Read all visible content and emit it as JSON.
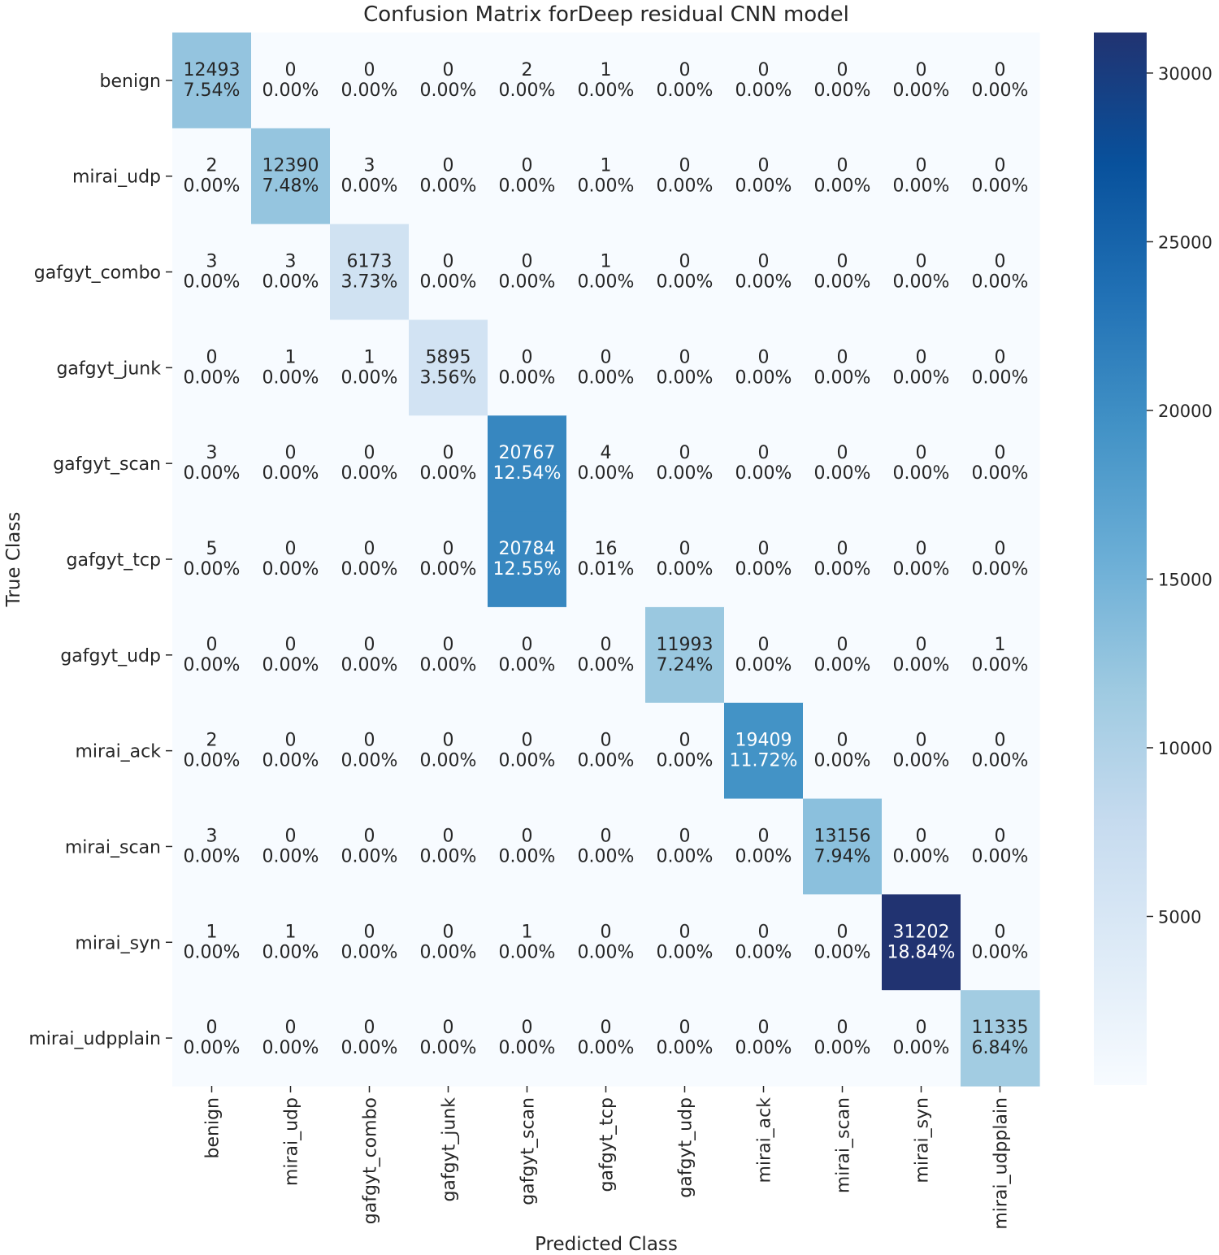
{
  "chart_data": {
    "type": "heatmap",
    "title": "Confusion Matrix forDeep residual CNN model",
    "xlabel": "Predicted Class",
    "ylabel": "True Class",
    "colormap": "Blues",
    "classes": [
      "benign",
      "mirai_udp",
      "gafgyt_combo",
      "gafgyt_junk",
      "gafgyt_scan",
      "gafgyt_tcp",
      "gafgyt_udp",
      "mirai_ack",
      "mirai_scan",
      "mirai_syn",
      "mirai_udpplain"
    ],
    "matrix": [
      [
        12493,
        0,
        0,
        0,
        2,
        1,
        0,
        0,
        0,
        0,
        0
      ],
      [
        2,
        12390,
        3,
        0,
        0,
        1,
        0,
        0,
        0,
        0,
        0
      ],
      [
        3,
        3,
        6173,
        0,
        0,
        1,
        0,
        0,
        0,
        0,
        0
      ],
      [
        0,
        1,
        1,
        5895,
        0,
        0,
        0,
        0,
        0,
        0,
        0
      ],
      [
        3,
        0,
        0,
        0,
        20767,
        4,
        0,
        0,
        0,
        0,
        0
      ],
      [
        5,
        0,
        0,
        0,
        20784,
        16,
        0,
        0,
        0,
        0,
        0
      ],
      [
        0,
        0,
        0,
        0,
        0,
        0,
        11993,
        0,
        0,
        0,
        1
      ],
      [
        2,
        0,
        0,
        0,
        0,
        0,
        0,
        19409,
        0,
        0,
        0
      ],
      [
        3,
        0,
        0,
        0,
        0,
        0,
        0,
        0,
        13156,
        0,
        0
      ],
      [
        1,
        1,
        0,
        0,
        1,
        0,
        0,
        0,
        0,
        31202,
        0
      ],
      [
        0,
        0,
        0,
        0,
        0,
        0,
        0,
        0,
        0,
        0,
        11335
      ]
    ],
    "percentages": [
      [
        "7.54%",
        "0.00%",
        "0.00%",
        "0.00%",
        "0.00%",
        "0.00%",
        "0.00%",
        "0.00%",
        "0.00%",
        "0.00%",
        "0.00%"
      ],
      [
        "0.00%",
        "7.48%",
        "0.00%",
        "0.00%",
        "0.00%",
        "0.00%",
        "0.00%",
        "0.00%",
        "0.00%",
        "0.00%",
        "0.00%"
      ],
      [
        "0.00%",
        "0.00%",
        "3.73%",
        "0.00%",
        "0.00%",
        "0.00%",
        "0.00%",
        "0.00%",
        "0.00%",
        "0.00%",
        "0.00%"
      ],
      [
        "0.00%",
        "0.00%",
        "0.00%",
        "3.56%",
        "0.00%",
        "0.00%",
        "0.00%",
        "0.00%",
        "0.00%",
        "0.00%",
        "0.00%"
      ],
      [
        "0.00%",
        "0.00%",
        "0.00%",
        "0.00%",
        "12.54%",
        "0.00%",
        "0.00%",
        "0.00%",
        "0.00%",
        "0.00%",
        "0.00%"
      ],
      [
        "0.00%",
        "0.00%",
        "0.00%",
        "0.00%",
        "12.55%",
        "0.01%",
        "0.00%",
        "0.00%",
        "0.00%",
        "0.00%",
        "0.00%"
      ],
      [
        "0.00%",
        "0.00%",
        "0.00%",
        "0.00%",
        "0.00%",
        "0.00%",
        "7.24%",
        "0.00%",
        "0.00%",
        "0.00%",
        "0.00%"
      ],
      [
        "0.00%",
        "0.00%",
        "0.00%",
        "0.00%",
        "0.00%",
        "0.00%",
        "0.00%",
        "11.72%",
        "0.00%",
        "0.00%",
        "0.00%"
      ],
      [
        "0.00%",
        "0.00%",
        "0.00%",
        "0.00%",
        "0.00%",
        "0.00%",
        "0.00%",
        "0.00%",
        "7.94%",
        "0.00%",
        "0.00%"
      ],
      [
        "0.00%",
        "0.00%",
        "0.00%",
        "0.00%",
        "0.00%",
        "0.00%",
        "0.00%",
        "0.00%",
        "0.00%",
        "18.84%",
        "0.00%"
      ],
      [
        "0.00%",
        "0.00%",
        "0.00%",
        "0.00%",
        "0.00%",
        "0.00%",
        "0.00%",
        "0.00%",
        "0.00%",
        "0.00%",
        "6.84%"
      ]
    ],
    "colorbar": {
      "range": [
        0,
        31202
      ],
      "ticks": [
        5000,
        10000,
        15000,
        20000,
        25000,
        30000
      ],
      "tick_labels": [
        "5000",
        "10000",
        "15000",
        "20000",
        "25000",
        "30000"
      ]
    }
  }
}
